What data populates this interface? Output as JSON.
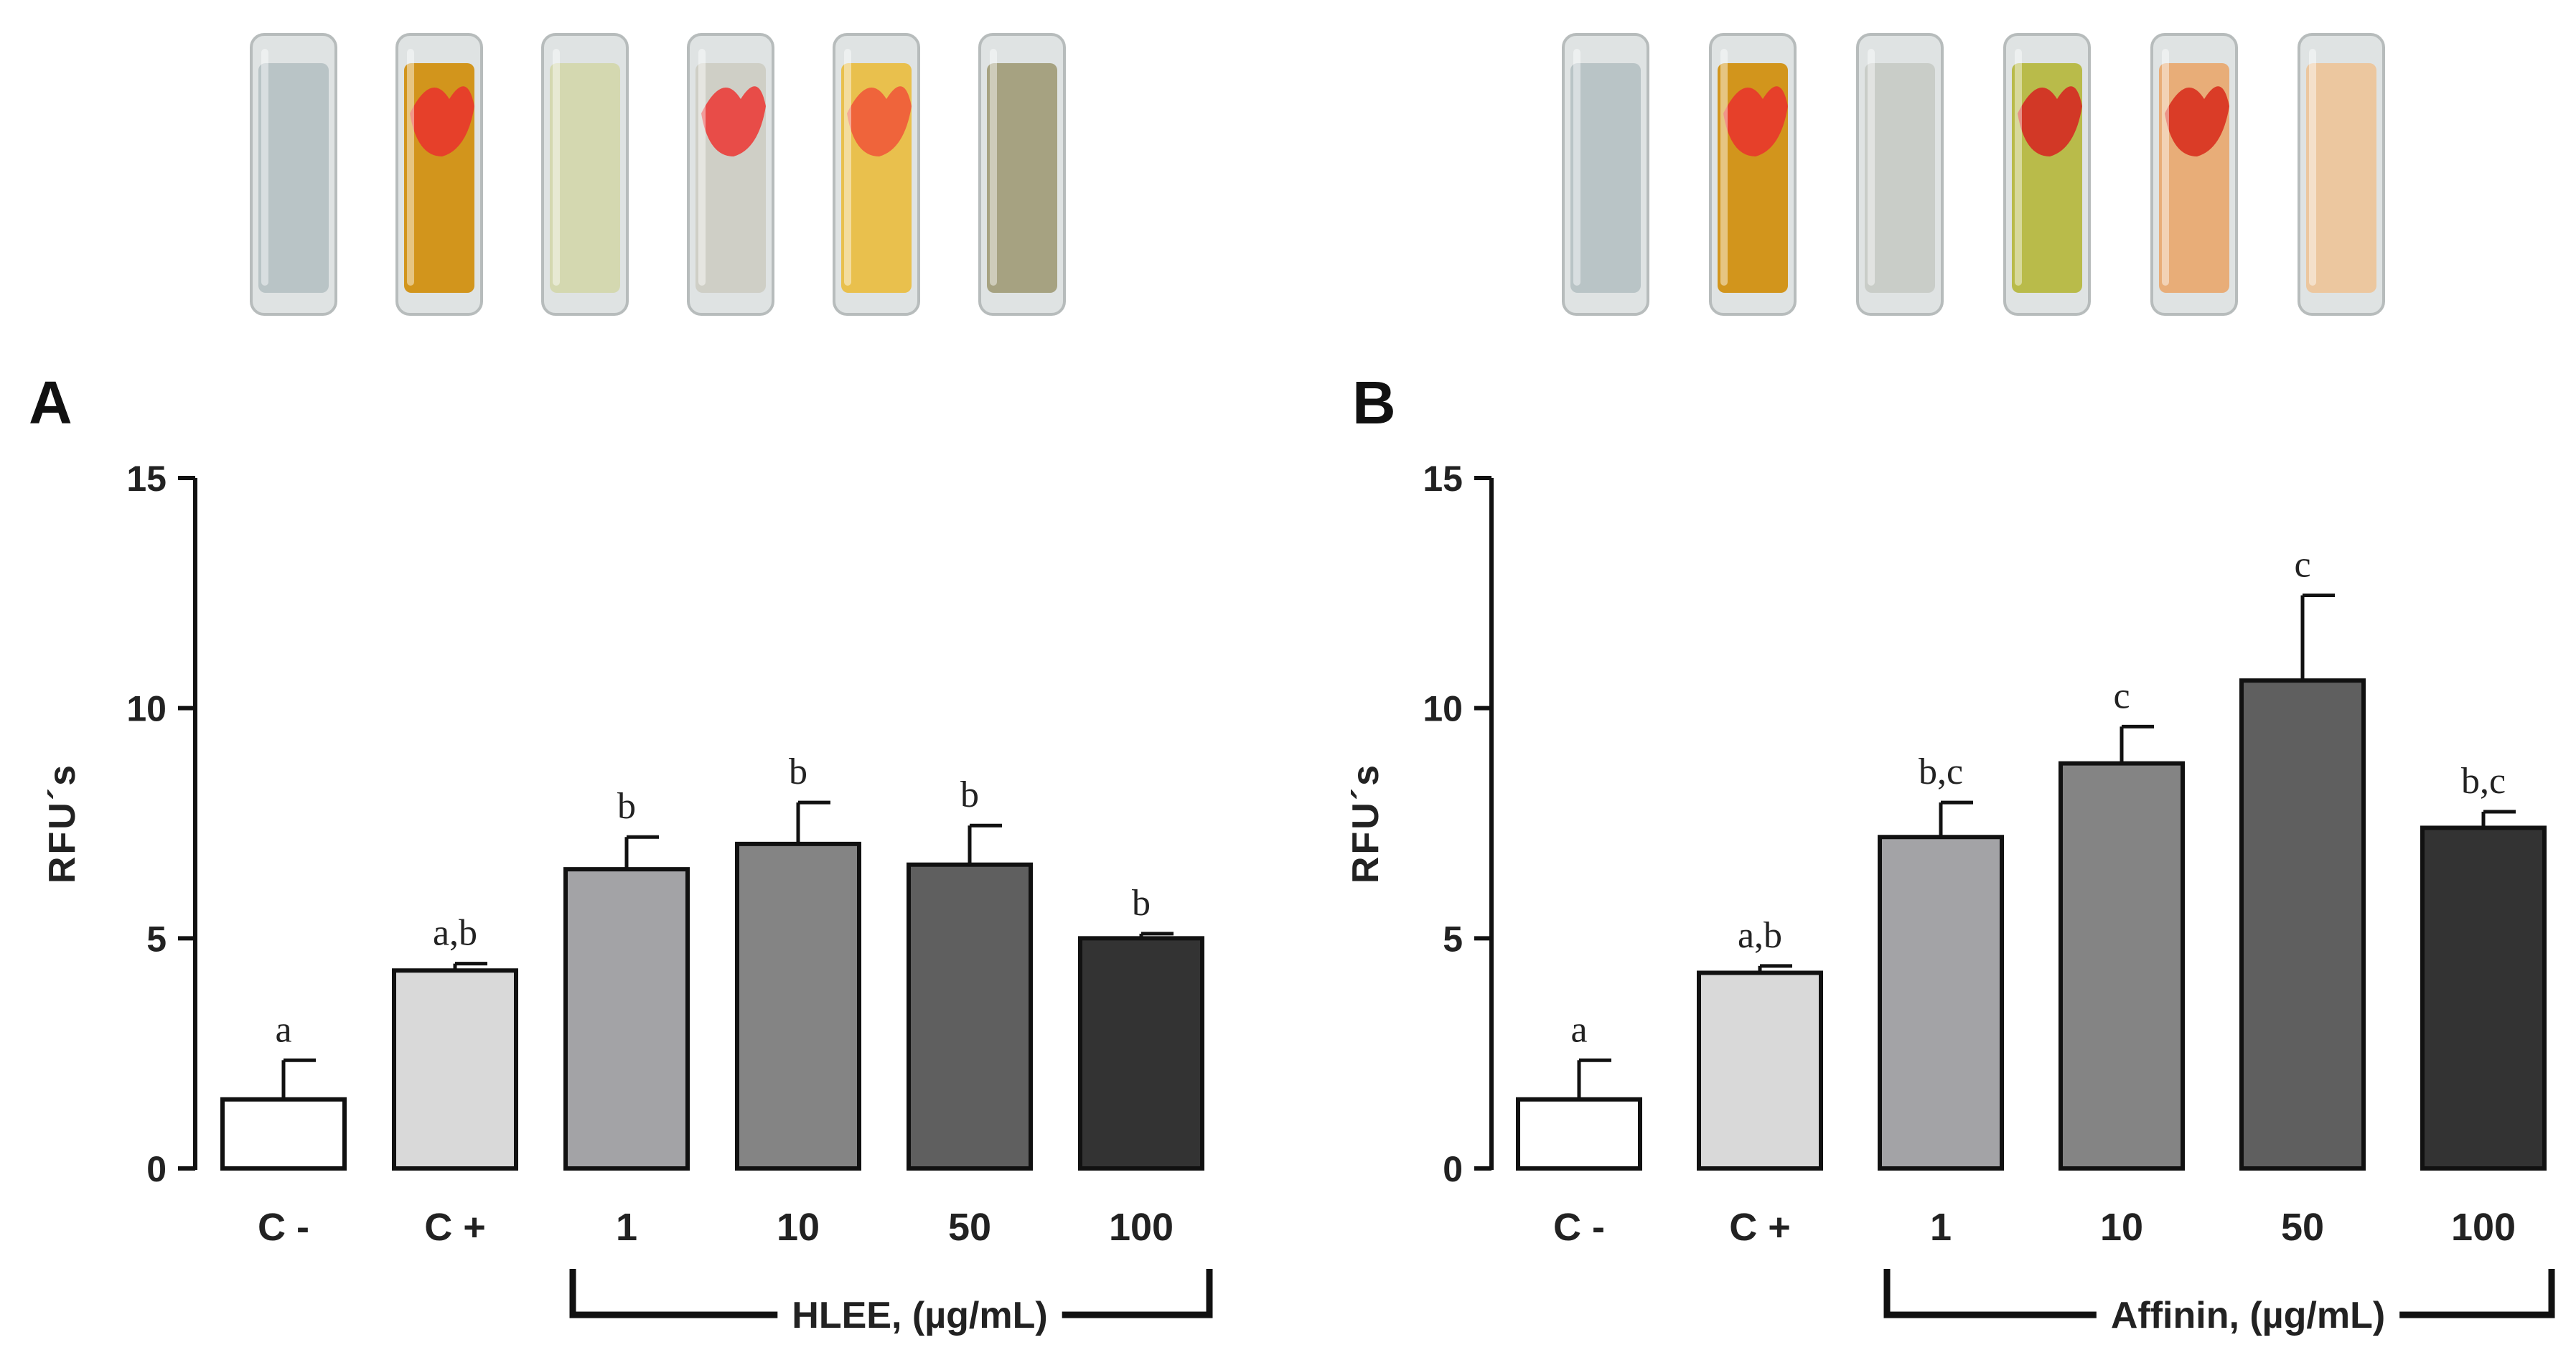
{
  "panels": [
    {
      "label": "A",
      "tube_colors": [
        "#b9c4c6",
        "#d2951c",
        "#d4d8b0",
        "#cfcfc6",
        "#e9c04d",
        "#a6a281"
      ],
      "tube_overlay_colors": [
        "",
        "#e8362c",
        "",
        "#ea3d3a",
        "#ef5a3a",
        ""
      ],
      "chart_data": {
        "type": "bar",
        "ylabel": "RFU´s",
        "ylim": [
          0,
          15
        ],
        "yticks": [
          0,
          5,
          10,
          15
        ],
        "categories": [
          "C -",
          "C +",
          "1",
          "10",
          "50",
          "100"
        ],
        "values": [
          1.5,
          4.3,
          6.5,
          7.05,
          6.6,
          5.0
        ],
        "errors": [
          0.85,
          0.15,
          0.7,
          0.9,
          0.85,
          0.1
        ],
        "significance": [
          "a",
          "a,b",
          "b",
          "b",
          "b",
          "b"
        ],
        "bar_colors": [
          "#ffffff",
          "#d9d9d9",
          "#a3a3a6",
          "#848484",
          "#5f5f5f",
          "#333333"
        ],
        "group_label": "HLEE,  (µg/mL)",
        "group_span": [
          "1",
          "100"
        ]
      }
    },
    {
      "label": "B",
      "tube_colors": [
        "#b9c4c6",
        "#d2951c",
        "#c9cdc8",
        "#b9bb4a",
        "#e8ad78",
        "#ecc79f"
      ],
      "tube_overlay_colors": [
        "",
        "#e8362c",
        "",
        "#d52a22",
        "#d8301e",
        ""
      ],
      "chart_data": {
        "type": "bar",
        "ylabel": "RFU´s",
        "ylim": [
          0,
          15
        ],
        "yticks": [
          0,
          5,
          10,
          15
        ],
        "categories": [
          "C -",
          "C +",
          "1",
          "10",
          "50",
          "100"
        ],
        "values": [
          1.5,
          4.25,
          7.2,
          8.8,
          10.6,
          7.4
        ],
        "errors": [
          0.85,
          0.15,
          0.75,
          0.8,
          1.85,
          0.35
        ],
        "significance": [
          "a",
          "a,b",
          "b,c",
          "c",
          "c",
          "b,c"
        ],
        "bar_colors": [
          "#ffffff",
          "#d9d9d9",
          "#a3a3a6",
          "#848484",
          "#5f5f5f",
          "#333333"
        ],
        "group_label": "Affinin, (µg/mL)",
        "group_span": [
          "1",
          "100"
        ]
      }
    }
  ]
}
